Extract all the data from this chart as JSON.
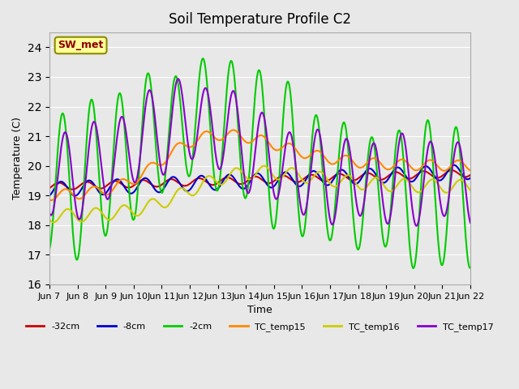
{
  "title": "Soil Temperature Profile C2",
  "xlabel": "Time",
  "ylabel": "Temperature (C)",
  "ylim": [
    16.0,
    24.5
  ],
  "yticks": [
    16.0,
    17.0,
    18.0,
    19.0,
    20.0,
    21.0,
    22.0,
    23.0,
    24.0
  ],
  "x_labels": [
    "Jun 7",
    "Jun 8",
    "Jun 9",
    "Jun 10",
    "Jun 11",
    "Jun 12",
    "Jun 13",
    "Jun 14",
    "Jun 15",
    "Jun 16",
    "Jun 17",
    "Jun 18",
    "Jun 19",
    "Jun 20",
    "Jun 21",
    "Jun 22"
  ],
  "bg_color": "#e8e8e8",
  "plot_bg_color": "#e8e8e8",
  "series": {
    "-32cm": {
      "color": "#cc0000",
      "linewidth": 1.5
    },
    "-8cm": {
      "color": "#0000cc",
      "linewidth": 1.5
    },
    "-2cm": {
      "color": "#00cc00",
      "linewidth": 1.5
    },
    "TC_temp15": {
      "color": "#ff8800",
      "linewidth": 1.5
    },
    "TC_temp16": {
      "color": "#cccc00",
      "linewidth": 1.5
    },
    "TC_temp17": {
      "color": "#8800cc",
      "linewidth": 1.5
    }
  },
  "annotation_text": "SW_met",
  "annotation_color": "#8b0000",
  "annotation_bg": "#ffff99",
  "annotation_border": "#8b8b00"
}
